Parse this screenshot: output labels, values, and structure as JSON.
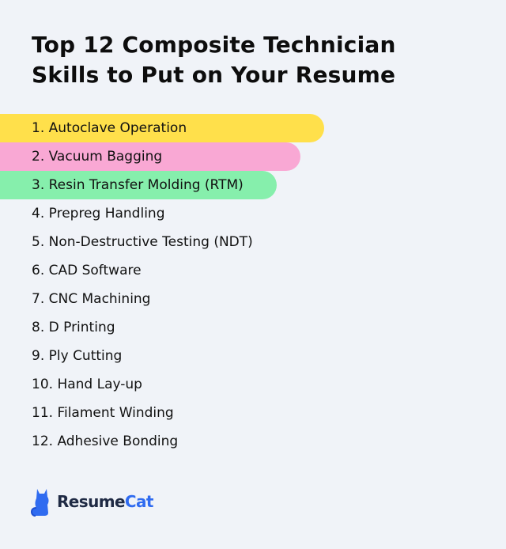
{
  "title": {
    "line1": "Top 12 Composite Technician",
    "line2": "Skills to Put on Your Resume"
  },
  "skills": [
    {
      "label": "1. Autoclave Operation",
      "highlight": "#ffe04b",
      "bar_fraction": 0.64
    },
    {
      "label": "2. Vacuum Bagging",
      "highlight": "#f9a8d4",
      "bar_fraction": 0.594
    },
    {
      "label": "3. Resin Transfer Molding (RTM)",
      "highlight": "#86efac",
      "bar_fraction": 0.547
    },
    {
      "label": "4. Prepreg Handling"
    },
    {
      "label": "5. Non-Destructive Testing (NDT)"
    },
    {
      "label": "6. CAD Software"
    },
    {
      "label": "7. CNC Machining"
    },
    {
      "label": "8. D Printing"
    },
    {
      "label": "9. Ply Cutting"
    },
    {
      "label": "10. Hand Lay-up"
    },
    {
      "label": "11. Filament Winding"
    },
    {
      "label": "12. Adhesive Bonding"
    }
  ],
  "brand": {
    "name_part1": "Resume",
    "name_part2": "Cat",
    "icon": "cat-icon",
    "colors": {
      "dark": "#1f2a44",
      "accent": "#2f6bf0"
    }
  },
  "colors": {
    "background": "#f0f3f8"
  }
}
